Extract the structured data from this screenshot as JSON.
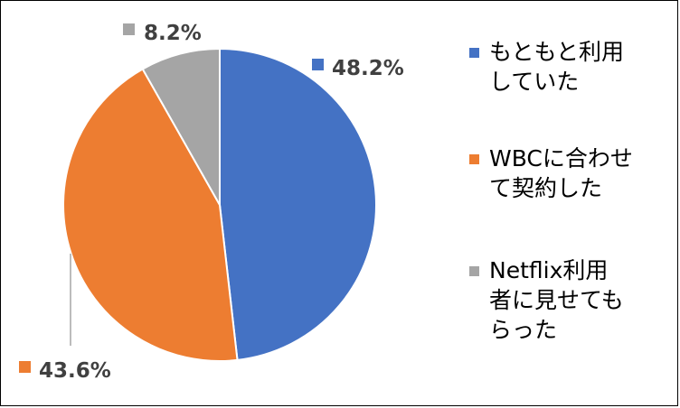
{
  "chart_data": {
    "type": "pie",
    "categories": [
      "もともと利用\nしていた",
      "WBCに合わせ\nて契約した",
      "Netflix利用\n者に見せても\nらった"
    ],
    "values": [
      48.2,
      43.6,
      8.2
    ],
    "data_labels": [
      "48.2%",
      "43.6%",
      "8.2%"
    ],
    "colors": [
      "#4472C4",
      "#ED7D31",
      "#A5A5A5"
    ],
    "legend_position": "right",
    "title": ""
  }
}
